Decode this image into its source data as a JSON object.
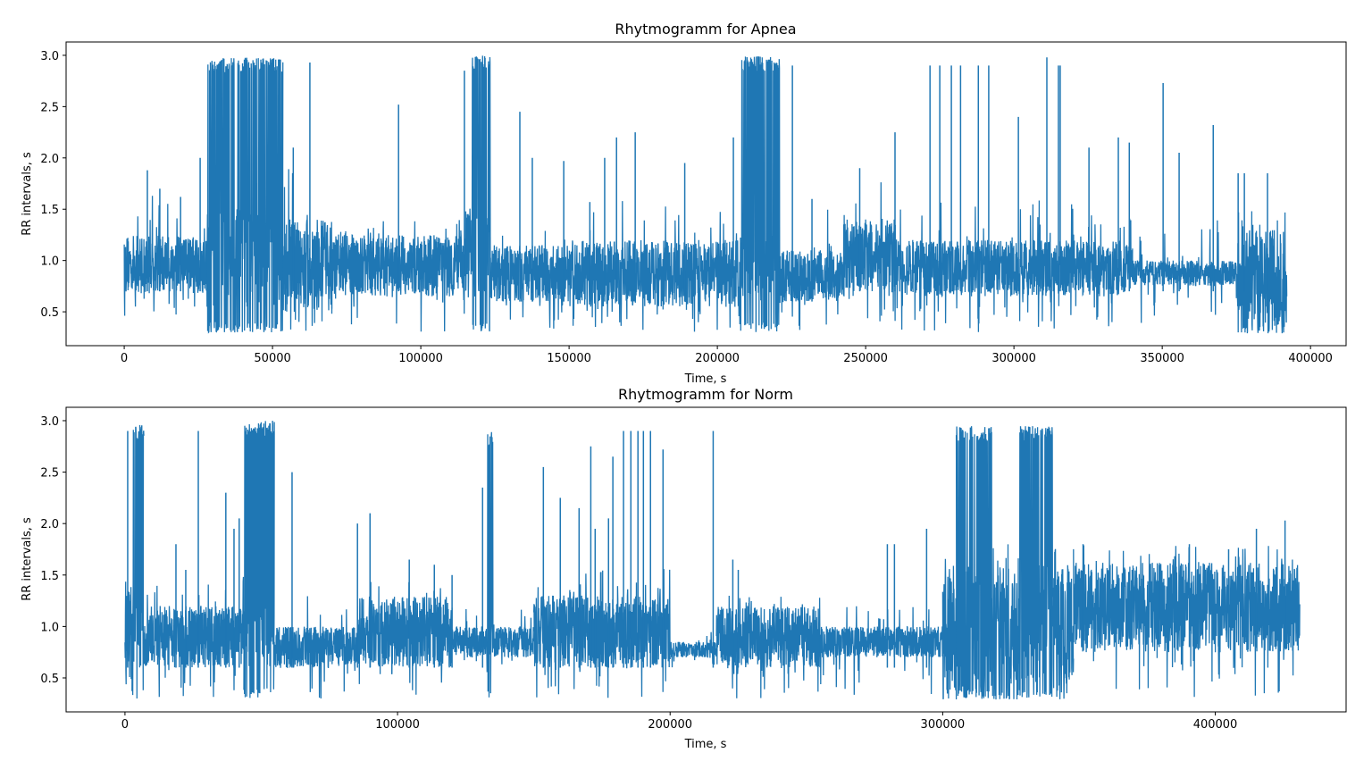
{
  "chart_data": [
    {
      "type": "line",
      "title": "Rhytmogramm for Apnea",
      "xlabel": "Time, s",
      "ylabel": "RR intervals, s",
      "xlim": [
        -19600,
        412000
      ],
      "ylim": [
        0.17,
        3.13
      ],
      "xticks": [
        0,
        50000,
        100000,
        150000,
        200000,
        250000,
        300000,
        350000,
        400000
      ],
      "xtick_labels": [
        "0",
        "50000",
        "100000",
        "150000",
        "200000",
        "250000",
        "300000",
        "350000",
        "400000"
      ],
      "yticks": [
        0.5,
        1.0,
        1.5,
        2.0,
        2.5,
        3.0
      ],
      "ytick_labels": [
        "0.5",
        "1.0",
        "1.5",
        "2.0",
        "2.5",
        "3.0"
      ],
      "color": "#1f77b4",
      "segments": [
        {
          "t": [
            0,
            28000
          ],
          "core": [
            0.68,
            1.25
          ],
          "range": [
            0.45,
            1.65
          ],
          "burst": false
        },
        {
          "t": [
            28000,
            53500
          ],
          "core": [
            0.55,
            1.5
          ],
          "range": [
            0.3,
            2.98
          ],
          "burst": true
        },
        {
          "t": [
            53500,
            70000
          ],
          "core": [
            0.5,
            1.4
          ],
          "range": [
            0.3,
            1.9
          ],
          "burst": false
        },
        {
          "t": [
            70000,
            115000
          ],
          "core": [
            0.65,
            1.25
          ],
          "range": [
            0.3,
            1.4
          ],
          "burst": false
        },
        {
          "t": [
            115000,
            117000
          ],
          "core": [
            0.6,
            1.5
          ],
          "range": [
            0.4,
            2.0
          ],
          "burst": false
        },
        {
          "t": [
            117000,
            123500
          ],
          "core": [
            0.6,
            1.5
          ],
          "range": [
            0.3,
            3.0
          ],
          "burst": true
        },
        {
          "t": [
            123500,
            150000
          ],
          "core": [
            0.6,
            1.15
          ],
          "range": [
            0.3,
            1.6
          ],
          "burst": false
        },
        {
          "t": [
            150000,
            207500
          ],
          "core": [
            0.55,
            1.2
          ],
          "range": [
            0.3,
            1.6
          ],
          "burst": false
        },
        {
          "t": [
            207500,
            221000
          ],
          "core": [
            0.6,
            1.3
          ],
          "range": [
            0.3,
            2.99
          ],
          "burst": true
        },
        {
          "t": [
            221000,
            243000
          ],
          "core": [
            0.6,
            1.1
          ],
          "range": [
            0.3,
            1.5
          ],
          "burst": false
        },
        {
          "t": [
            243000,
            260000
          ],
          "core": [
            0.7,
            1.4
          ],
          "range": [
            0.4,
            1.8
          ],
          "burst": false
        },
        {
          "t": [
            260000,
            340000
          ],
          "core": [
            0.65,
            1.2
          ],
          "range": [
            0.3,
            1.6
          ],
          "burst": false
        },
        {
          "t": [
            340000,
            375000
          ],
          "core": [
            0.75,
            1.0
          ],
          "range": [
            0.3,
            1.4
          ],
          "burst": false
        },
        {
          "t": [
            375000,
            392000
          ],
          "core": [
            0.3,
            1.3
          ],
          "range": [
            0.29,
            1.5
          ],
          "burst": false
        }
      ],
      "spikes": [
        [
          7800,
          0.7,
          1.88
        ],
        [
          12000,
          0.7,
          1.7
        ],
        [
          19000,
          0.7,
          1.62
        ],
        [
          25600,
          0.7,
          2.0
        ],
        [
          62600,
          0.7,
          2.93
        ],
        [
          57000,
          0.7,
          2.1
        ],
        [
          92500,
          0.7,
          2.52
        ],
        [
          114700,
          0.7,
          2.85
        ],
        [
          121500,
          0.7,
          2.45
        ],
        [
          133400,
          0.6,
          2.45
        ],
        [
          137600,
          0.6,
          2.0
        ],
        [
          148200,
          0.6,
          1.97
        ],
        [
          157000,
          0.6,
          1.57
        ],
        [
          162000,
          0.6,
          2.0
        ],
        [
          166000,
          0.6,
          2.2
        ],
        [
          172300,
          0.6,
          2.25
        ],
        [
          189000,
          0.6,
          1.95
        ],
        [
          205400,
          0.6,
          2.2
        ],
        [
          225300,
          0.6,
          2.9
        ],
        [
          231900,
          0.6,
          1.6
        ],
        [
          248000,
          0.7,
          1.9
        ],
        [
          259900,
          0.7,
          2.25
        ],
        [
          271700,
          0.7,
          2.9
        ],
        [
          275000,
          0.7,
          2.9
        ],
        [
          278900,
          0.7,
          2.9
        ],
        [
          282000,
          0.7,
          2.9
        ],
        [
          288000,
          0.7,
          2.9
        ],
        [
          291500,
          0.7,
          2.9
        ],
        [
          301500,
          0.7,
          2.4
        ],
        [
          311100,
          0.7,
          2.98
        ],
        [
          315000,
          0.7,
          2.9
        ],
        [
          315600,
          0.7,
          2.9
        ],
        [
          325300,
          0.7,
          2.1
        ],
        [
          335200,
          0.7,
          2.2
        ],
        [
          338900,
          0.7,
          2.15
        ],
        [
          350300,
          0.7,
          2.73
        ],
        [
          355700,
          0.7,
          2.05
        ],
        [
          367200,
          0.7,
          2.32
        ],
        [
          375600,
          0.7,
          1.85
        ],
        [
          377700,
          0.7,
          1.85
        ],
        [
          385500,
          0.7,
          1.85
        ]
      ]
    },
    {
      "type": "line",
      "title": "Rhytmogramm for Norm",
      "xlabel": "Time, s",
      "ylabel": "RR intervals, s",
      "xlim": [
        -21600,
        448000
      ],
      "ylim": [
        0.17,
        3.13
      ],
      "xticks": [
        0,
        100000,
        200000,
        300000,
        400000
      ],
      "xtick_labels": [
        "0",
        "100000",
        "200000",
        "300000",
        "400000"
      ],
      "yticks": [
        0.5,
        1.0,
        1.5,
        2.0,
        2.5,
        3.0
      ],
      "ytick_labels": [
        "0.5",
        "1.0",
        "1.5",
        "2.0",
        "2.5",
        "3.0"
      ],
      "color": "#1f77b4",
      "segments": [
        {
          "t": [
            0,
            2600
          ],
          "core": [
            0.4,
            1.4
          ],
          "range": [
            0.3,
            1.5
          ],
          "burst": false
        },
        {
          "t": [
            2600,
            7000
          ],
          "core": [
            0.6,
            1.4
          ],
          "range": [
            0.3,
            2.97
          ],
          "burst": true
        },
        {
          "t": [
            7000,
            43600
          ],
          "core": [
            0.6,
            1.2
          ],
          "range": [
            0.3,
            1.5
          ],
          "burst": false
        },
        {
          "t": [
            43600,
            54800
          ],
          "core": [
            0.6,
            1.2
          ],
          "range": [
            0.3,
            3.0
          ],
          "burst": true
        },
        {
          "t": [
            54800,
            85000
          ],
          "core": [
            0.6,
            1.0
          ],
          "range": [
            0.3,
            1.3
          ],
          "burst": false
        },
        {
          "t": [
            85000,
            120000
          ],
          "core": [
            0.6,
            1.3
          ],
          "range": [
            0.3,
            1.5
          ],
          "burst": false
        },
        {
          "t": [
            120000,
            133000
          ],
          "core": [
            0.7,
            1.0
          ],
          "range": [
            0.4,
            1.2
          ],
          "burst": false
        },
        {
          "t": [
            133000,
            135000
          ],
          "core": [
            0.7,
            1.2
          ],
          "range": [
            0.3,
            2.9
          ],
          "burst": true
        },
        {
          "t": [
            135000,
            150000
          ],
          "core": [
            0.7,
            1.0
          ],
          "range": [
            0.3,
            1.2
          ],
          "burst": false
        },
        {
          "t": [
            150000,
            200000
          ],
          "core": [
            0.6,
            1.3
          ],
          "range": [
            0.3,
            1.6
          ],
          "burst": false
        },
        {
          "t": [
            200000,
            217000
          ],
          "core": [
            0.7,
            0.85
          ],
          "range": [
            0.6,
            0.95
          ],
          "burst": false
        },
        {
          "t": [
            217000,
            255000
          ],
          "core": [
            0.6,
            1.2
          ],
          "range": [
            0.3,
            1.3
          ],
          "burst": false
        },
        {
          "t": [
            255000,
            300000
          ],
          "core": [
            0.7,
            1.0
          ],
          "range": [
            0.3,
            1.2
          ],
          "burst": false
        },
        {
          "t": [
            300000,
            305000
          ],
          "core": [
            0.3,
            1.6
          ],
          "range": [
            0.29,
            1.7
          ],
          "burst": false
        },
        {
          "t": [
            305000,
            318000
          ],
          "core": [
            0.3,
            1.6
          ],
          "range": [
            0.29,
            2.95
          ],
          "burst": true
        },
        {
          "t": [
            318000,
            327900
          ],
          "core": [
            0.3,
            1.6
          ],
          "range": [
            0.29,
            1.8
          ],
          "burst": false
        },
        {
          "t": [
            327900,
            340300
          ],
          "core": [
            0.3,
            1.6
          ],
          "range": [
            0.29,
            2.95
          ],
          "burst": true
        },
        {
          "t": [
            340300,
            348000
          ],
          "core": [
            0.3,
            1.6
          ],
          "range": [
            0.29,
            1.8
          ],
          "burst": false
        },
        {
          "t": [
            348000,
            431000
          ],
          "core": [
            0.75,
            1.62
          ],
          "range": [
            0.3,
            1.8
          ],
          "burst": false
        }
      ],
      "spikes": [
        [
          1000,
          0.6,
          2.9
        ],
        [
          18700,
          0.6,
          1.8
        ],
        [
          22300,
          0.6,
          1.55
        ],
        [
          26900,
          0.6,
          2.9
        ],
        [
          37000,
          0.6,
          2.3
        ],
        [
          40000,
          0.6,
          1.95
        ],
        [
          41900,
          0.6,
          2.05
        ],
        [
          61300,
          0.6,
          2.5
        ],
        [
          85300,
          0.6,
          2.0
        ],
        [
          89900,
          0.6,
          2.1
        ],
        [
          104300,
          0.6,
          1.65
        ],
        [
          113500,
          0.6,
          1.6
        ],
        [
          120000,
          0.6,
          1.5
        ],
        [
          131200,
          0.6,
          2.35
        ],
        [
          153500,
          0.6,
          2.55
        ],
        [
          159700,
          0.6,
          2.25
        ],
        [
          166600,
          0.6,
          2.15
        ],
        [
          170900,
          0.6,
          2.75
        ],
        [
          172500,
          0.6,
          1.95
        ],
        [
          177400,
          0.6,
          2.05
        ],
        [
          179000,
          0.6,
          2.65
        ],
        [
          182900,
          0.6,
          2.9
        ],
        [
          185600,
          0.6,
          2.9
        ],
        [
          188200,
          0.6,
          2.9
        ],
        [
          190200,
          0.6,
          2.9
        ],
        [
          192800,
          0.6,
          2.9
        ],
        [
          197400,
          0.6,
          2.72
        ],
        [
          215800,
          0.6,
          2.9
        ],
        [
          223000,
          0.6,
          1.65
        ],
        [
          225000,
          0.6,
          1.55
        ],
        [
          279700,
          0.6,
          1.8
        ],
        [
          282300,
          0.6,
          1.8
        ],
        [
          294100,
          0.6,
          1.95
        ],
        [
          351500,
          0.8,
          1.8
        ],
        [
          369500,
          0.8,
          1.55
        ],
        [
          379400,
          0.8,
          1.6
        ],
        [
          390500,
          0.8,
          1.8
        ],
        [
          404900,
          0.8,
          1.75
        ],
        [
          415100,
          0.8,
          1.95
        ],
        [
          425600,
          0.8,
          2.03
        ]
      ]
    }
  ]
}
